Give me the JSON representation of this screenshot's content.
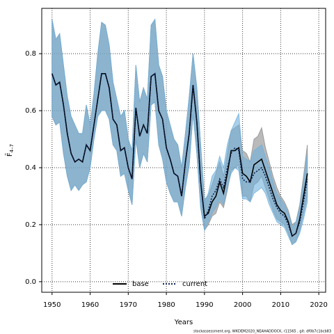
{
  "chart_data": {
    "type": "line",
    "xlabel": "Years",
    "ylabel": "F̄",
    "ylabel_sub": "4–7",
    "footnote": "stockassessment.org, WKDEM2020_NEAHADDOCK, r11565 , git: df0b7c1bcb83",
    "x": [
      1950,
      1951,
      1952,
      1953,
      1954,
      1955,
      1956,
      1957,
      1958,
      1959,
      1960,
      1961,
      1962,
      1963,
      1964,
      1965,
      1966,
      1967,
      1968,
      1969,
      1970,
      1971,
      1972,
      1973,
      1974,
      1975,
      1976,
      1977,
      1978,
      1979,
      1980,
      1981,
      1982,
      1983,
      1984,
      1985,
      1986,
      1987,
      1988,
      1989,
      1990,
      1991,
      1992,
      1993,
      1994,
      1995,
      1996,
      1997,
      1998,
      1999,
      2000,
      2001,
      2002,
      2003,
      2004,
      2005,
      2006,
      2007,
      2008,
      2009,
      2010,
      2011,
      2012,
      2013,
      2014,
      2015,
      2016,
      2017
    ],
    "xlim": [
      1947.3,
      2021.8
    ],
    "xticks": [
      1950,
      1960,
      1970,
      1980,
      1990,
      2000,
      2010,
      2020
    ],
    "ylim": [
      -0.037,
      0.959
    ],
    "yticks": [
      {
        "value": 0,
        "label": "0.0"
      },
      0.2,
      0.4,
      0.6,
      0.8
    ],
    "grid": true,
    "legend": "bottom",
    "series": [
      {
        "name": "base",
        "color": "#000000",
        "band_color": "#8c8c8c",
        "dash": false,
        "values": [
          0.73,
          0.69,
          0.7,
          0.62,
          0.52,
          0.45,
          0.42,
          0.43,
          0.42,
          0.48,
          0.46,
          0.55,
          0.64,
          0.73,
          0.73,
          0.68,
          0.57,
          0.55,
          0.46,
          0.47,
          0.4,
          0.36,
          0.61,
          0.51,
          0.55,
          0.52,
          0.72,
          0.73,
          0.6,
          0.57,
          0.47,
          0.43,
          0.38,
          0.37,
          0.3,
          0.42,
          0.52,
          0.69,
          0.56,
          0.35,
          0.23,
          0.24,
          0.28,
          0.3,
          0.35,
          0.31,
          0.38,
          0.46,
          0.46,
          0.47,
          0.38,
          0.37,
          0.35,
          0.41,
          0.42,
          0.43,
          0.39,
          0.35,
          0.31,
          0.27,
          0.25,
          0.24,
          0.21,
          0.16,
          0.17,
          0.22,
          0.3,
          0.38
        ],
        "lower": [
          0.58,
          0.55,
          0.56,
          0.45,
          0.37,
          0.32,
          0.34,
          0.32,
          0.34,
          0.35,
          0.4,
          0.5,
          0.58,
          0.6,
          0.6,
          0.57,
          0.48,
          0.46,
          0.37,
          0.38,
          0.32,
          0.27,
          0.5,
          0.4,
          0.45,
          0.42,
          0.62,
          0.63,
          0.48,
          0.43,
          0.35,
          0.31,
          0.28,
          0.28,
          0.23,
          0.33,
          0.41,
          0.59,
          0.45,
          0.26,
          0.18,
          0.2,
          0.23,
          0.24,
          0.28,
          0.26,
          0.32,
          0.39,
          0.4,
          0.41,
          0.3,
          0.3,
          0.28,
          0.34,
          0.35,
          0.37,
          0.33,
          0.29,
          0.25,
          0.22,
          0.21,
          0.2,
          0.17,
          0.13,
          0.14,
          0.18,
          0.24,
          0.3
        ],
        "upper": [
          0.92,
          0.85,
          0.87,
          0.76,
          0.65,
          0.58,
          0.55,
          0.52,
          0.52,
          0.62,
          0.55,
          0.66,
          0.8,
          0.91,
          0.9,
          0.83,
          0.7,
          0.64,
          0.58,
          0.6,
          0.5,
          0.46,
          0.76,
          0.63,
          0.68,
          0.64,
          0.9,
          0.92,
          0.76,
          0.72,
          0.6,
          0.55,
          0.5,
          0.48,
          0.4,
          0.52,
          0.65,
          0.8,
          0.68,
          0.48,
          0.29,
          0.3,
          0.34,
          0.38,
          0.42,
          0.37,
          0.45,
          0.53,
          0.54,
          0.55,
          0.46,
          0.45,
          0.42,
          0.5,
          0.51,
          0.54,
          0.47,
          0.42,
          0.37,
          0.33,
          0.3,
          0.28,
          0.25,
          0.2,
          0.21,
          0.27,
          0.37,
          0.48
        ]
      },
      {
        "name": "current",
        "color": "#0b1f4d",
        "band_color": "#6fb0dc",
        "dash": true,
        "values": [
          0.73,
          0.69,
          0.7,
          0.62,
          0.52,
          0.45,
          0.42,
          0.43,
          0.42,
          0.48,
          0.46,
          0.55,
          0.64,
          0.73,
          0.73,
          0.68,
          0.57,
          0.55,
          0.46,
          0.47,
          0.4,
          0.36,
          0.61,
          0.51,
          0.55,
          0.52,
          0.72,
          0.73,
          0.6,
          0.57,
          0.47,
          0.43,
          0.38,
          0.37,
          0.3,
          0.42,
          0.52,
          0.69,
          0.56,
          0.35,
          0.22,
          0.25,
          0.3,
          0.32,
          0.36,
          0.33,
          0.4,
          0.45,
          0.47,
          0.46,
          0.36,
          0.35,
          0.35,
          0.38,
          0.39,
          0.4,
          0.37,
          0.33,
          0.29,
          0.26,
          0.24,
          0.23,
          0.2,
          0.16,
          0.17,
          0.21,
          0.28,
          0.36
        ],
        "lower": [
          0.58,
          0.55,
          0.56,
          0.45,
          0.37,
          0.32,
          0.34,
          0.32,
          0.34,
          0.35,
          0.4,
          0.5,
          0.58,
          0.6,
          0.6,
          0.57,
          0.48,
          0.46,
          0.37,
          0.38,
          0.32,
          0.27,
          0.5,
          0.4,
          0.45,
          0.42,
          0.62,
          0.63,
          0.48,
          0.43,
          0.35,
          0.31,
          0.28,
          0.28,
          0.23,
          0.33,
          0.41,
          0.59,
          0.45,
          0.26,
          0.18,
          0.21,
          0.24,
          0.26,
          0.29,
          0.27,
          0.33,
          0.38,
          0.4,
          0.39,
          0.29,
          0.29,
          0.28,
          0.31,
          0.32,
          0.33,
          0.31,
          0.27,
          0.24,
          0.21,
          0.2,
          0.19,
          0.16,
          0.13,
          0.14,
          0.17,
          0.22,
          0.28
        ],
        "upper": [
          0.92,
          0.85,
          0.87,
          0.76,
          0.65,
          0.58,
          0.55,
          0.52,
          0.52,
          0.62,
          0.55,
          0.66,
          0.8,
          0.91,
          0.9,
          0.83,
          0.7,
          0.64,
          0.58,
          0.6,
          0.5,
          0.46,
          0.76,
          0.63,
          0.68,
          0.64,
          0.9,
          0.92,
          0.76,
          0.72,
          0.6,
          0.55,
          0.5,
          0.48,
          0.4,
          0.52,
          0.65,
          0.8,
          0.68,
          0.48,
          0.28,
          0.31,
          0.37,
          0.39,
          0.44,
          0.4,
          0.48,
          0.53,
          0.56,
          0.59,
          0.44,
          0.43,
          0.42,
          0.46,
          0.47,
          0.48,
          0.44,
          0.4,
          0.35,
          0.31,
          0.29,
          0.27,
          0.24,
          0.19,
          0.21,
          0.26,
          0.35,
          0.45
        ]
      }
    ]
  }
}
